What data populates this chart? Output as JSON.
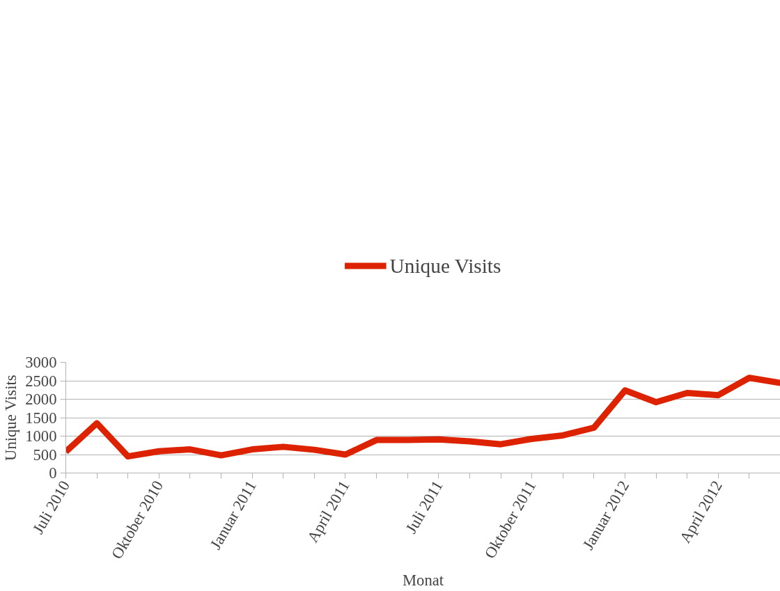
{
  "chart_data": {
    "type": "line",
    "xlabel": "Monat",
    "ylabel": "Unique Visits",
    "categories": [
      "Juli 2010",
      null,
      null,
      "Oktober 2010",
      null,
      null,
      "Januar 2011",
      null,
      null,
      "April 2011",
      null,
      null,
      "Juli 2011",
      null,
      null,
      "Oktober 2011",
      null,
      null,
      "Januar 2012",
      null,
      null,
      "April 2012",
      null,
      null
    ],
    "series": [
      {
        "name": "Unique Visits",
        "color": "#dd2200",
        "values": [
          575,
          1350,
          450,
          590,
          640,
          480,
          640,
          710,
          630,
          500,
          895,
          895,
          910,
          860,
          780,
          925,
          1020,
          1230,
          2240,
          1920,
          2170,
          2110,
          2580,
          2440
        ]
      }
    ],
    "ylim": [
      0,
      3000
    ],
    "yticks": [
      0,
      500,
      1000,
      1500,
      2000,
      2500,
      3000
    ],
    "grid": "y",
    "legend": "top",
    "line_style": "solid",
    "marker": "none"
  }
}
